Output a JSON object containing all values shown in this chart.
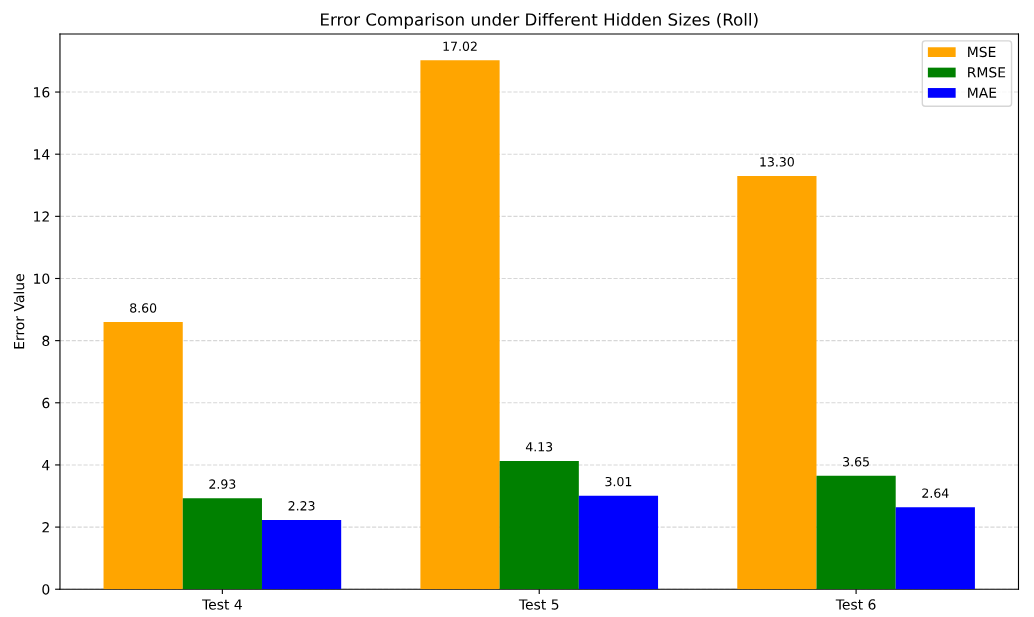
{
  "chart_data": {
    "type": "bar",
    "title": "Error Comparison under Different Hidden Sizes (Roll)",
    "ylabel": "Error Value",
    "categories": [
      "Test 4",
      "Test 5",
      "Test 6"
    ],
    "series": [
      {
        "name": "MSE",
        "color": "#ffa500",
        "values": [
          8.6,
          17.02,
          13.3
        ],
        "value_labels": [
          "8.60",
          "17.02",
          "13.30"
        ]
      },
      {
        "name": "RMSE",
        "color": "#008000",
        "values": [
          2.93,
          4.13,
          3.65
        ],
        "value_labels": [
          "2.93",
          "4.13",
          "3.65"
        ]
      },
      {
        "name": "MAE",
        "color": "#0000ff",
        "values": [
          2.23,
          3.01,
          2.64
        ],
        "value_labels": [
          "2.23",
          "3.01",
          "2.64"
        ]
      }
    ],
    "ylim": [
      0,
      17.87
    ],
    "yticks": [
      0,
      2,
      4,
      6,
      8,
      10,
      12,
      14,
      16
    ],
    "grid": "y",
    "legend": "top right"
  }
}
